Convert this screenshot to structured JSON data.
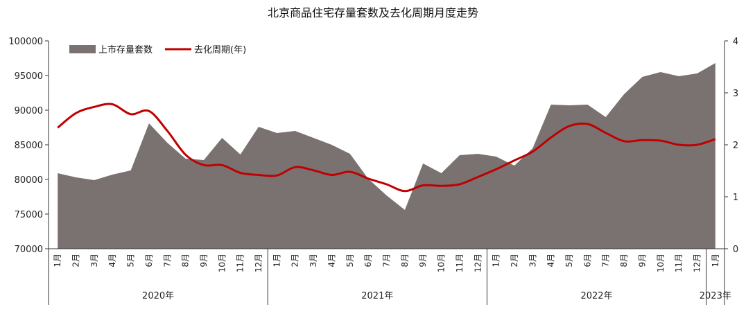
{
  "chart_data": {
    "type": "area",
    "title": "北京商品住宅存量套数及去化周期月度走势",
    "categories": [
      "1月",
      "2月",
      "3月",
      "4月",
      "5月",
      "6月",
      "7月",
      "8月",
      "9月",
      "10月",
      "11月",
      "12月",
      "1月",
      "2月",
      "3月",
      "4月",
      "5月",
      "6月",
      "7月",
      "8月",
      "9月",
      "10月",
      "11月",
      "12月",
      "1月",
      "2月",
      "3月",
      "4月",
      "5月",
      "6月",
      "7月",
      "8月",
      "9月",
      "10月",
      "11月",
      "12月",
      "1月"
    ],
    "year_groups": [
      {
        "label": "2020年",
        "count": 12
      },
      {
        "label": "2021年",
        "count": 12
      },
      {
        "label": "2022年",
        "count": 12
      },
      {
        "label": "2023年",
        "count": 1
      }
    ],
    "series": [
      {
        "name": "上市存量套数",
        "kind": "area",
        "axis": "left",
        "color": "#7a7271",
        "values": [
          80900,
          80300,
          79900,
          80700,
          81300,
          88100,
          85300,
          83000,
          82800,
          86000,
          83600,
          87600,
          86700,
          87000,
          86000,
          85000,
          83700,
          80100,
          77700,
          75600,
          82300,
          80900,
          83500,
          83700,
          83300,
          82000,
          84500,
          90800,
          90700,
          90800,
          89000,
          92300,
          94800,
          95500,
          94900,
          95300,
          96800
        ]
      },
      {
        "name": "去化周期(年)",
        "kind": "line",
        "axis": "right",
        "color": "#c00000",
        "values": [
          2.33,
          2.61,
          2.73,
          2.78,
          2.59,
          2.65,
          2.27,
          1.81,
          1.61,
          1.61,
          1.46,
          1.42,
          1.41,
          1.57,
          1.51,
          1.42,
          1.48,
          1.35,
          1.24,
          1.11,
          1.22,
          1.21,
          1.24,
          1.38,
          1.53,
          1.7,
          1.87,
          2.14,
          2.36,
          2.4,
          2.23,
          2.07,
          2.09,
          2.08,
          2.0,
          2.0,
          2.11
        ]
      }
    ],
    "y_left": {
      "min": 70000,
      "max": 100000,
      "ticks": [
        70000,
        75000,
        80000,
        85000,
        90000,
        95000,
        100000
      ]
    },
    "y_right": {
      "min": 0,
      "max": 4,
      "ticks": [
        0,
        1,
        2,
        3,
        4
      ]
    },
    "legend_position": "top-left",
    "grid": false
  }
}
